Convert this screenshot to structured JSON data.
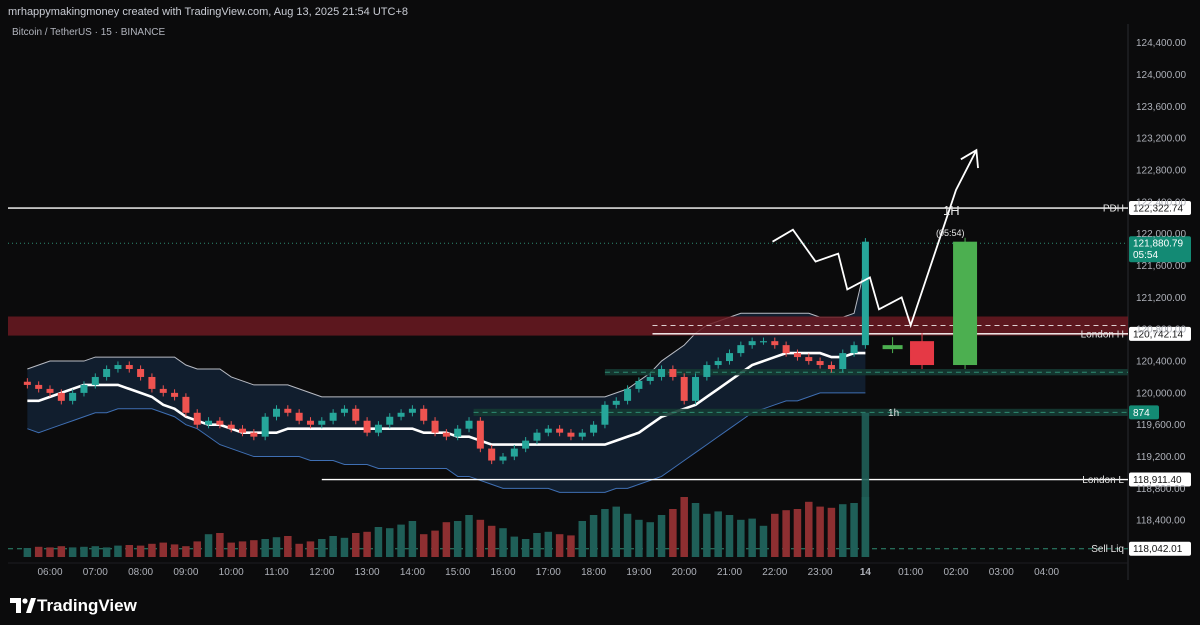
{
  "header": {
    "caption": "mrhappymakingmoney created with TradingView.com, Aug 13, 2025 21:54 UTC+8",
    "symbol": "Bitcoin / TetherUS · 15 · BINANCE"
  },
  "brand": {
    "name": "TradingView",
    "icon": "tradingview-logo-icon"
  },
  "colors": {
    "up": "#26a69a",
    "down": "#ef5350",
    "vol_up": "#1f5f58",
    "vol_down": "#8e2f31",
    "sma": "#ffffff",
    "bb_upper": "#b9bcc4",
    "bb_lower": "#3f6fb3",
    "bb_fill": "#14273d",
    "zone_red": "#6b1a22",
    "zone_green": "#153a33",
    "dashed_green": "#2e8b72",
    "price_label": "#138a74",
    "line_white": "#ffffff"
  },
  "chart_data": {
    "type": "candlestick",
    "title": "Bitcoin / TetherUS · 15 · BINANCE",
    "y_range": [
      117900,
      124560
    ],
    "y_ticks": [
      "124,400.00",
      "124,000.00",
      "123,600.00",
      "123,200.00",
      "122,800.00",
      "122,400.00",
      "122,000.00",
      "121,600.00",
      "121,200.00",
      "120,800.00",
      "120,400.00",
      "120,000.00",
      "119,600.00",
      "119,200.00",
      "118,800.00",
      "118,400.00"
    ],
    "y_tick_values": [
      124400,
      124000,
      123600,
      123200,
      122800,
      122400,
      122000,
      121600,
      121200,
      120800,
      120400,
      120000,
      119600,
      119200,
      118800,
      118400
    ],
    "x_ticks": [
      "06:00",
      "07:00",
      "08:00",
      "09:00",
      "10:00",
      "11:00",
      "12:00",
      "13:00",
      "14:00",
      "15:00",
      "16:00",
      "17:00",
      "18:00",
      "19:00",
      "20:00",
      "21:00",
      "22:00",
      "23:00",
      "14",
      "01:00",
      "02:00",
      "03:00",
      "04:00"
    ],
    "x_tick_hours": [
      6,
      7,
      8,
      9,
      10,
      11,
      12,
      13,
      14,
      15,
      16,
      17,
      18,
      19,
      20,
      21,
      22,
      23,
      24,
      25,
      26,
      27,
      28
    ],
    "start_hour": 5.5,
    "candle_interval_hours": 0.25,
    "closes": [
      120100,
      120050,
      120000,
      119900,
      120000,
      120100,
      120200,
      120300,
      120350,
      120300,
      120200,
      120050,
      120000,
      119950,
      119750,
      119600,
      119650,
      119600,
      119550,
      119500,
      119450,
      119700,
      119800,
      119750,
      119650,
      119600,
      119650,
      119750,
      119800,
      119650,
      119500,
      119600,
      119700,
      119750,
      119800,
      119650,
      119500,
      119450,
      119550,
      119650,
      119300,
      119150,
      119200,
      119300,
      119400,
      119500,
      119550,
      119500,
      119450,
      119500,
      119600,
      119850,
      119900,
      120050,
      120150,
      120200,
      120300,
      120200,
      119900,
      120200,
      120350,
      120400,
      120500,
      120600,
      120650,
      120650,
      120600,
      120500,
      120450,
      120400,
      120350,
      120300,
      120500,
      120600,
      121900
    ],
    "volumes": [
      15,
      17,
      16,
      18,
      16,
      17,
      18,
      16,
      19,
      20,
      19,
      22,
      24,
      21,
      18,
      26,
      38,
      40,
      24,
      26,
      28,
      30,
      33,
      35,
      22,
      26,
      30,
      35,
      32,
      40,
      42,
      50,
      48,
      54,
      60,
      38,
      44,
      58,
      60,
      70,
      62,
      52,
      48,
      34,
      30,
      40,
      42,
      38,
      36,
      60,
      70,
      80,
      84,
      72,
      62,
      58,
      70,
      80,
      100,
      90,
      72,
      76,
      70,
      62,
      64,
      52,
      72,
      78,
      80,
      92,
      84,
      82,
      88,
      90,
      100
    ],
    "bb_upper": [
      120300,
      120350,
      120400,
      120400,
      120400,
      120400,
      120450,
      120450,
      120450,
      120450,
      120450,
      120450,
      120450,
      120450,
      120350,
      120300,
      120300,
      120300,
      120200,
      120150,
      120100,
      120100,
      120100,
      120100,
      120050,
      120000,
      119950,
      119950,
      119950,
      119950,
      119950,
      119950,
      119950,
      119950,
      119950,
      119950,
      119950,
      119950,
      119950,
      119950,
      119950,
      119950,
      119950,
      119950,
      119950,
      119950,
      119950,
      119950,
      119950,
      119950,
      119950,
      119950,
      120000,
      120050,
      120150,
      120250,
      120400,
      120500,
      120600,
      120750,
      120850,
      120900,
      120950,
      121000,
      121000,
      121000,
      121000,
      121000,
      121000,
      121000,
      120950,
      120950,
      120950,
      121000,
      121600
    ],
    "bb_lower": [
      119550,
      119500,
      119550,
      119600,
      119650,
      119700,
      119750,
      119750,
      119800,
      119800,
      119800,
      119800,
      119750,
      119700,
      119600,
      119550,
      119450,
      119350,
      119300,
      119250,
      119200,
      119200,
      119200,
      119200,
      119200,
      119150,
      119150,
      119150,
      119100,
      119100,
      119100,
      119050,
      119050,
      119050,
      119050,
      119050,
      119050,
      119050,
      118950,
      118950,
      118900,
      118850,
      118800,
      118800,
      118800,
      118800,
      118800,
      118750,
      118750,
      118750,
      118750,
      118750,
      118800,
      118800,
      118850,
      118900,
      118950,
      119050,
      119150,
      119250,
      119350,
      119450,
      119550,
      119650,
      119750,
      119800,
      119850,
      119900,
      119900,
      119950,
      120000,
      120000,
      120000,
      120000,
      120000
    ],
    "sma20": [
      119900,
      119900,
      119950,
      120000,
      120050,
      120100,
      120100,
      120100,
      120100,
      120050,
      120000,
      119950,
      119850,
      119800,
      119700,
      119650,
      119600,
      119600,
      119550,
      119500,
      119500,
      119500,
      119500,
      119550,
      119550,
      119550,
      119550,
      119550,
      119550,
      119550,
      119550,
      119550,
      119550,
      119550,
      119550,
      119500,
      119500,
      119500,
      119450,
      119450,
      119400,
      119350,
      119350,
      119350,
      119350,
      119350,
      119350,
      119350,
      119350,
      119350,
      119350,
      119350,
      119400,
      119450,
      119500,
      119600,
      119700,
      119750,
      119800,
      119850,
      119950,
      120050,
      120150,
      120250,
      120350,
      120400,
      120450,
      120500,
      120500,
      120500,
      120500,
      120450,
      120450,
      120500,
      120500
    ],
    "future_candles": [
      {
        "hour": 24.6,
        "open": 120550,
        "close": 120600,
        "high": 120700,
        "low": 120500
      },
      {
        "hour": 25.25,
        "open": 120650,
        "close": 120350,
        "high": 120750,
        "low": 120300
      },
      {
        "hour": 26.2,
        "open": 120350,
        "close": 121900,
        "high": 121950,
        "low": 120300
      }
    ],
    "projection_path": [
      {
        "h": 21.95,
        "p": 121900
      },
      {
        "h": 22.4,
        "p": 122050
      },
      {
        "h": 22.9,
        "p": 121650
      },
      {
        "h": 23.4,
        "p": 121750
      },
      {
        "h": 23.6,
        "p": 121300
      },
      {
        "h": 24.1,
        "p": 121450
      },
      {
        "h": 24.3,
        "p": 121050
      },
      {
        "h": 24.8,
        "p": 121200
      },
      {
        "h": 25.0,
        "p": 120850
      },
      {
        "h": 26.0,
        "p": 122550
      },
      {
        "h": 26.45,
        "p": 123050
      }
    ],
    "levels": [
      {
        "name": "PDH",
        "value": 122322.74,
        "label": "122,322.74"
      },
      {
        "name": "London H",
        "value": 120742.14,
        "label": "120,742.14"
      },
      {
        "name": "London L",
        "value": 118911.4,
        "label": "118,911.40"
      },
      {
        "name": "Sell Liq",
        "value": 118042.01,
        "label": "118,042.01"
      }
    ],
    "current_price": {
      "value": 121880.79,
      "label": "121,880.79",
      "countdown": "05:54"
    },
    "zones": [
      {
        "kind": "supply",
        "from": 120720,
        "to": 120960
      },
      {
        "kind": "demand-4h",
        "from": 120220,
        "to": 120300
      },
      {
        "kind": "demand-1h",
        "from": 119710,
        "to": 119800,
        "label": "1h",
        "tag": "874"
      }
    ],
    "annotations": {
      "timeframe": "1H",
      "countdown": "(05:54)",
      "zone_tag": "1h",
      "axis_tag": "874"
    }
  }
}
